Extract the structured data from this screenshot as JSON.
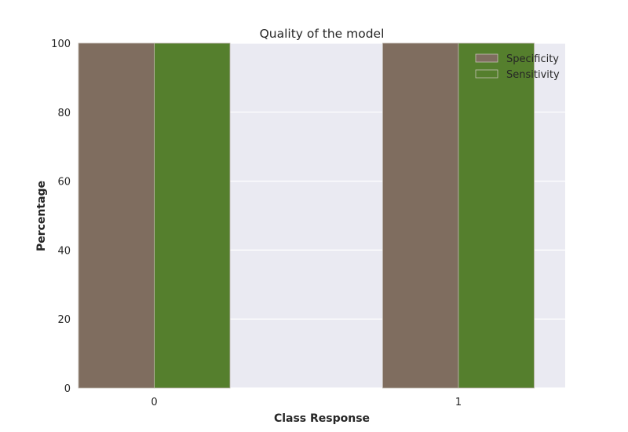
{
  "chart_data": {
    "type": "bar",
    "title": "Quality of the model",
    "xlabel": "Class Response",
    "ylabel": "Percentage",
    "categories": [
      "0",
      "1"
    ],
    "series": [
      {
        "name": "Specificity",
        "values": [
          100,
          100
        ],
        "color": "#7f6d5f"
      },
      {
        "name": "Sensitivity",
        "values": [
          100,
          100
        ],
        "color": "#557f2d"
      }
    ],
    "ylim": [
      0,
      100
    ],
    "yticks": [
      "0",
      "20",
      "40",
      "60",
      "80",
      "100"
    ],
    "grid": true,
    "legend_position": "top-right",
    "background_color": "#eaeaf2"
  }
}
